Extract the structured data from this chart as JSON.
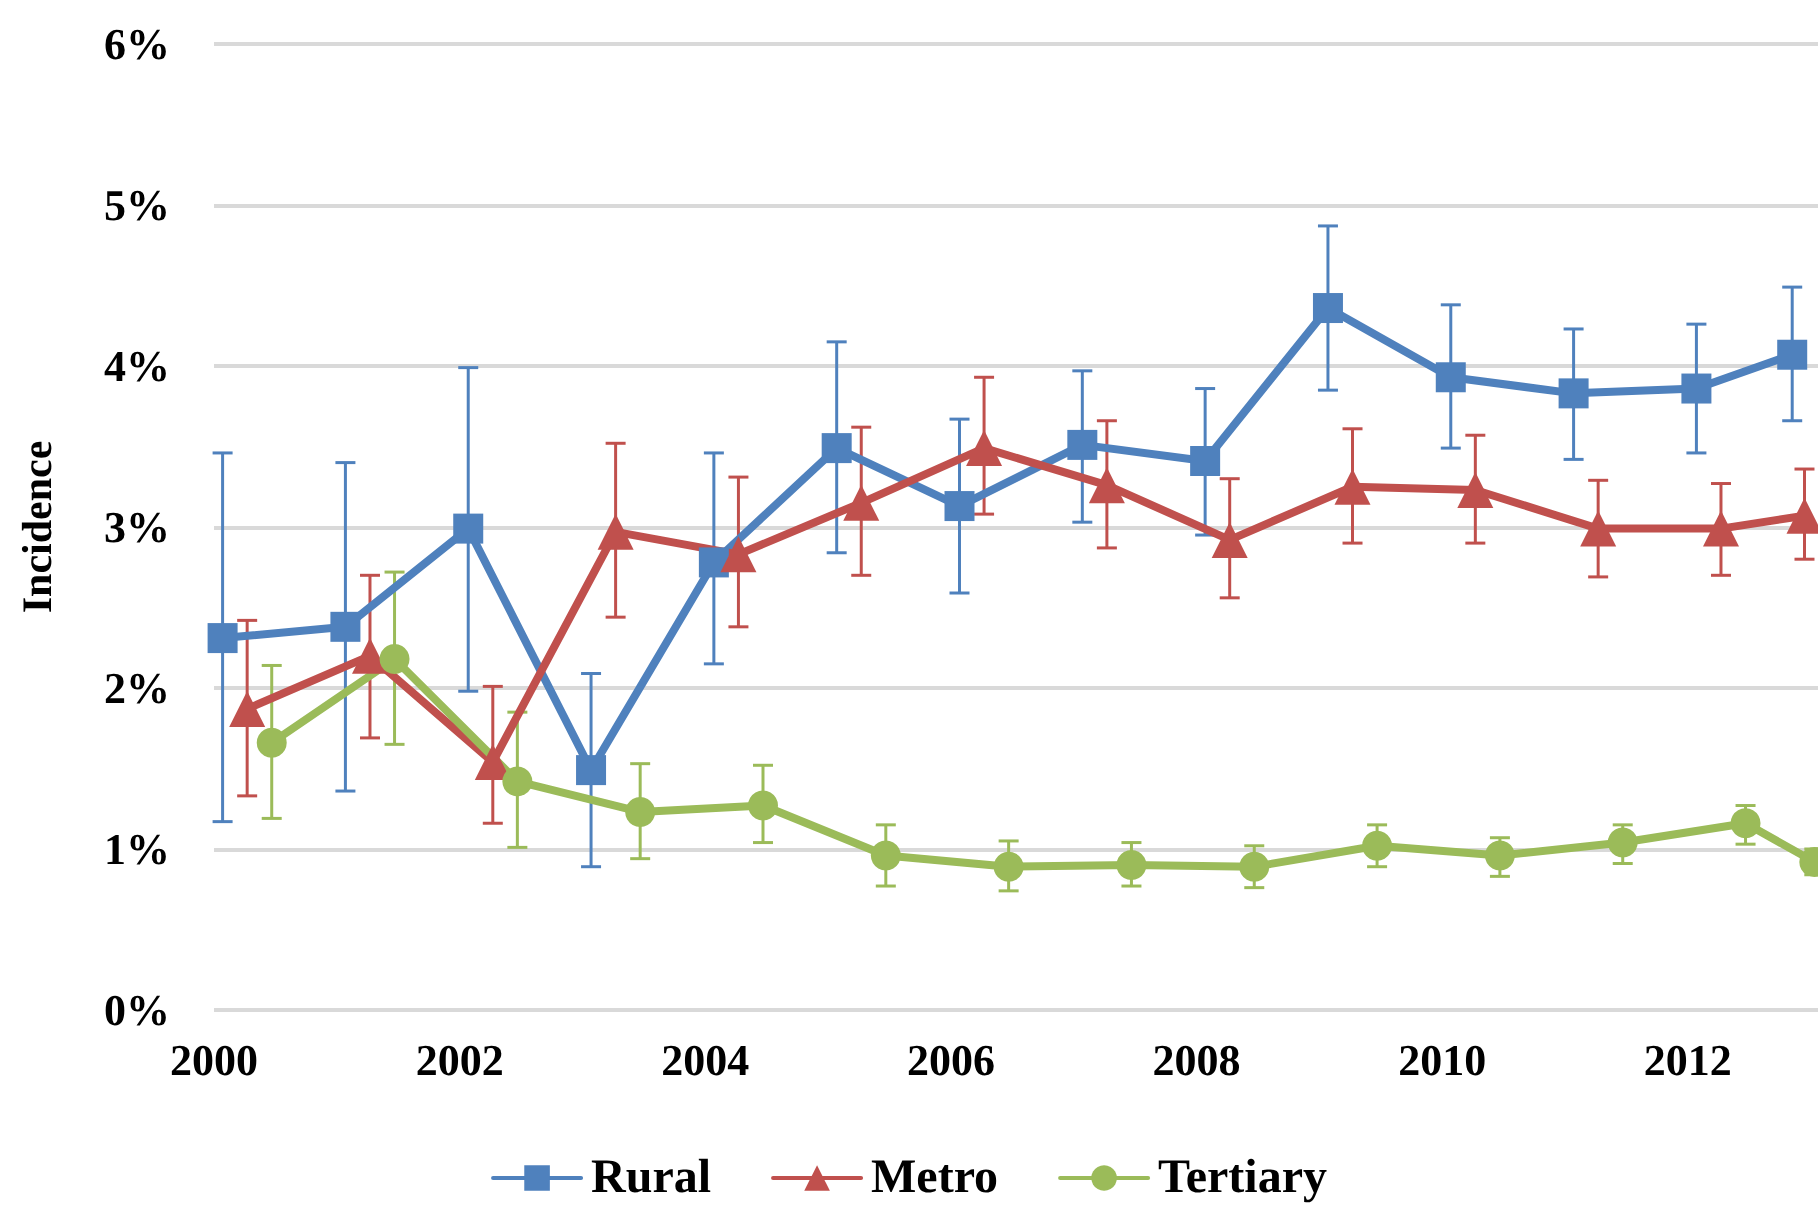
{
  "chart_data": {
    "type": "line",
    "ylabel": "Incidence",
    "xlim": [
      2000,
      2013.06
    ],
    "xticks": [
      2000,
      2002,
      2004,
      2006,
      2008,
      2010,
      2012
    ],
    "ylim": [
      0,
      6
    ],
    "yticks": [
      {
        "value": 0,
        "label": "0%"
      },
      {
        "value": 1,
        "label": "1%"
      },
      {
        "value": 2,
        "label": "2%"
      },
      {
        "value": 3,
        "label": "3%"
      },
      {
        "value": 4,
        "label": "4%"
      },
      {
        "value": 5,
        "label": "5%"
      },
      {
        "value": 6,
        "label": "6%"
      }
    ],
    "grid": "y",
    "legend": "bottom",
    "line_style": "solid",
    "series": [
      {
        "name": "Rural",
        "color": "#4f81bd",
        "marker": "square",
        "x": [
          2000.07,
          2001.07,
          2002.07,
          2003.07,
          2004.07,
          2005.07,
          2006.07,
          2007.07,
          2008.07,
          2009.07,
          2010.07,
          2011.07,
          2012.07,
          2012.85
        ],
        "values": [
          2.31,
          2.38,
          2.99,
          1.49,
          2.78,
          3.49,
          3.13,
          3.51,
          3.41,
          4.36,
          3.93,
          3.83,
          3.86,
          4.07
        ],
        "errors": [
          [
            1.17,
            3.46
          ],
          [
            1.36,
            3.4
          ],
          [
            1.98,
            3.99
          ],
          [
            0.89,
            2.09
          ],
          [
            2.15,
            3.46
          ],
          [
            2.84,
            4.15
          ],
          [
            2.59,
            3.67
          ],
          [
            3.03,
            3.97
          ],
          [
            2.95,
            3.86
          ],
          [
            3.85,
            4.87
          ],
          [
            3.49,
            4.38
          ],
          [
            3.42,
            4.23
          ],
          [
            3.46,
            4.26
          ],
          [
            3.66,
            4.49
          ]
        ]
      },
      {
        "name": "Metro",
        "color": "#c0504d",
        "marker": "triangle",
        "x": [
          2000.27,
          2001.27,
          2002.27,
          2003.27,
          2004.27,
          2005.27,
          2006.27,
          2007.27,
          2008.27,
          2009.27,
          2010.27,
          2011.27,
          2012.27,
          2012.95
        ],
        "values": [
          1.87,
          2.2,
          1.54,
          2.97,
          2.83,
          3.15,
          3.49,
          3.26,
          2.92,
          3.25,
          3.23,
          2.99,
          2.99,
          3.07
        ],
        "errors": [
          [
            1.33,
            2.42
          ],
          [
            1.69,
            2.7
          ],
          [
            1.16,
            2.01
          ],
          [
            2.44,
            3.52
          ],
          [
            2.38,
            3.31
          ],
          [
            2.7,
            3.62
          ],
          [
            3.08,
            3.93
          ],
          [
            2.87,
            3.66
          ],
          [
            2.56,
            3.3
          ],
          [
            2.9,
            3.61
          ],
          [
            2.9,
            3.57
          ],
          [
            2.69,
            3.29
          ],
          [
            2.7,
            3.27
          ],
          [
            2.8,
            3.36
          ]
        ]
      },
      {
        "name": "Tertiary",
        "color": "#9bbb59",
        "marker": "circle",
        "x": [
          2000.47,
          2001.47,
          2002.47,
          2003.47,
          2004.47,
          2005.47,
          2006.47,
          2007.47,
          2008.47,
          2009.47,
          2010.47,
          2011.47,
          2012.47,
          2013.03
        ],
        "values": [
          1.66,
          2.18,
          1.42,
          1.23,
          1.27,
          0.96,
          0.89,
          0.9,
          0.89,
          1.02,
          0.96,
          1.04,
          1.16,
          0.92
        ],
        "errors": [
          [
            1.19,
            2.14
          ],
          [
            1.65,
            2.72
          ],
          [
            1.01,
            1.85
          ],
          [
            0.94,
            1.53
          ],
          [
            1.04,
            1.52
          ],
          [
            0.77,
            1.15
          ],
          [
            0.74,
            1.05
          ],
          [
            0.77,
            1.04
          ],
          [
            0.76,
            1.02
          ],
          [
            0.89,
            1.15
          ],
          [
            0.83,
            1.07
          ],
          [
            0.91,
            1.15
          ],
          [
            1.03,
            1.27
          ],
          [
            0.84,
            1.0
          ]
        ]
      }
    ]
  }
}
